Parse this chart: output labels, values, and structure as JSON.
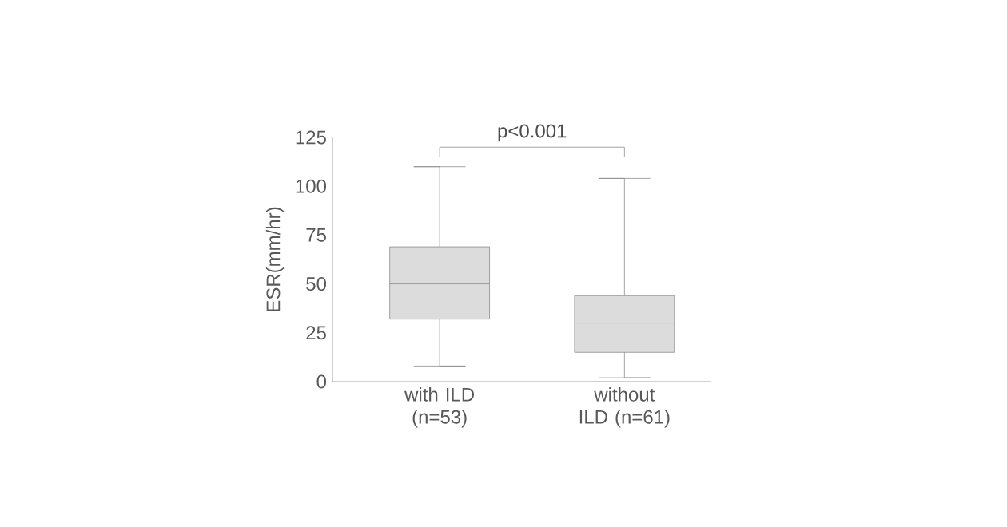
{
  "chart_data": {
    "type": "box",
    "ylabel": "ESR(mm/hr)",
    "categories": [
      "with ILD (n=53)",
      "without ILD (n=61)"
    ],
    "boxes": [
      {
        "low": 8,
        "q1": 32,
        "median": 50,
        "q3": 69,
        "high": 110
      },
      {
        "low": 2,
        "q1": 15,
        "median": 30,
        "q3": 44,
        "high": 104
      }
    ],
    "color": "#dcdcdc",
    "ylim": [
      0,
      125
    ],
    "yticks": [
      0,
      25,
      50,
      75,
      100,
      125
    ],
    "annotations": [
      "p<0.001"
    ]
  }
}
